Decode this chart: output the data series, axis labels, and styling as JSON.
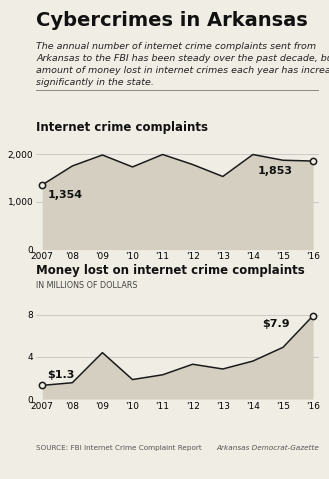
{
  "title": "Cybercrimes in Arkansas",
  "subtitle": "The annual number of internet crime complaints sent from\nArkansas to the FBI has been steady over the past decade, but the\namount of money lost in internet crimes each year has increased\nsignificantly in the state.",
  "chart1_title": "Internet crime complaints",
  "chart2_title": "Money lost on internet crime complaints",
  "chart2_subtitle": "IN MILLIONS OF DOLLARS",
  "source": "SOURCE: FBI Internet Crime Complaint Report",
  "credit": "Arkansas Democrat-Gazette",
  "years": [
    2007,
    2008,
    2009,
    2010,
    2011,
    2012,
    2013,
    2014,
    2015,
    2016
  ],
  "x_labels": [
    "2007",
    "'08",
    "'09",
    "'10",
    "'11",
    "'12",
    "'13",
    "'14",
    "'15",
    "'16"
  ],
  "complaints": [
    1354,
    1750,
    1980,
    1730,
    1990,
    1780,
    1530,
    1990,
    1870,
    1853
  ],
  "money": [
    1.3,
    1.55,
    4.4,
    1.85,
    2.3,
    3.3,
    2.85,
    3.6,
    4.9,
    7.9
  ],
  "fill_color": "#d4cfc0",
  "line_color": "#1a1a1a",
  "bg_color": "#f0ede4",
  "chart1_ylim": [
    0,
    2400
  ],
  "chart1_yticks": [
    0,
    1000,
    2000
  ],
  "chart2_ylim": [
    0,
    10
  ],
  "chart2_yticks": [
    0,
    4,
    8
  ],
  "annot1_first": "1,354",
  "annot1_last": "1,853",
  "annot2_first": "$1.3",
  "annot2_last": "$7.9",
  "title_fontsize": 14,
  "subtitle_fontsize": 6.8,
  "chart_title_fontsize": 8.5,
  "tick_fontsize": 6.5,
  "annot_fontsize": 8
}
